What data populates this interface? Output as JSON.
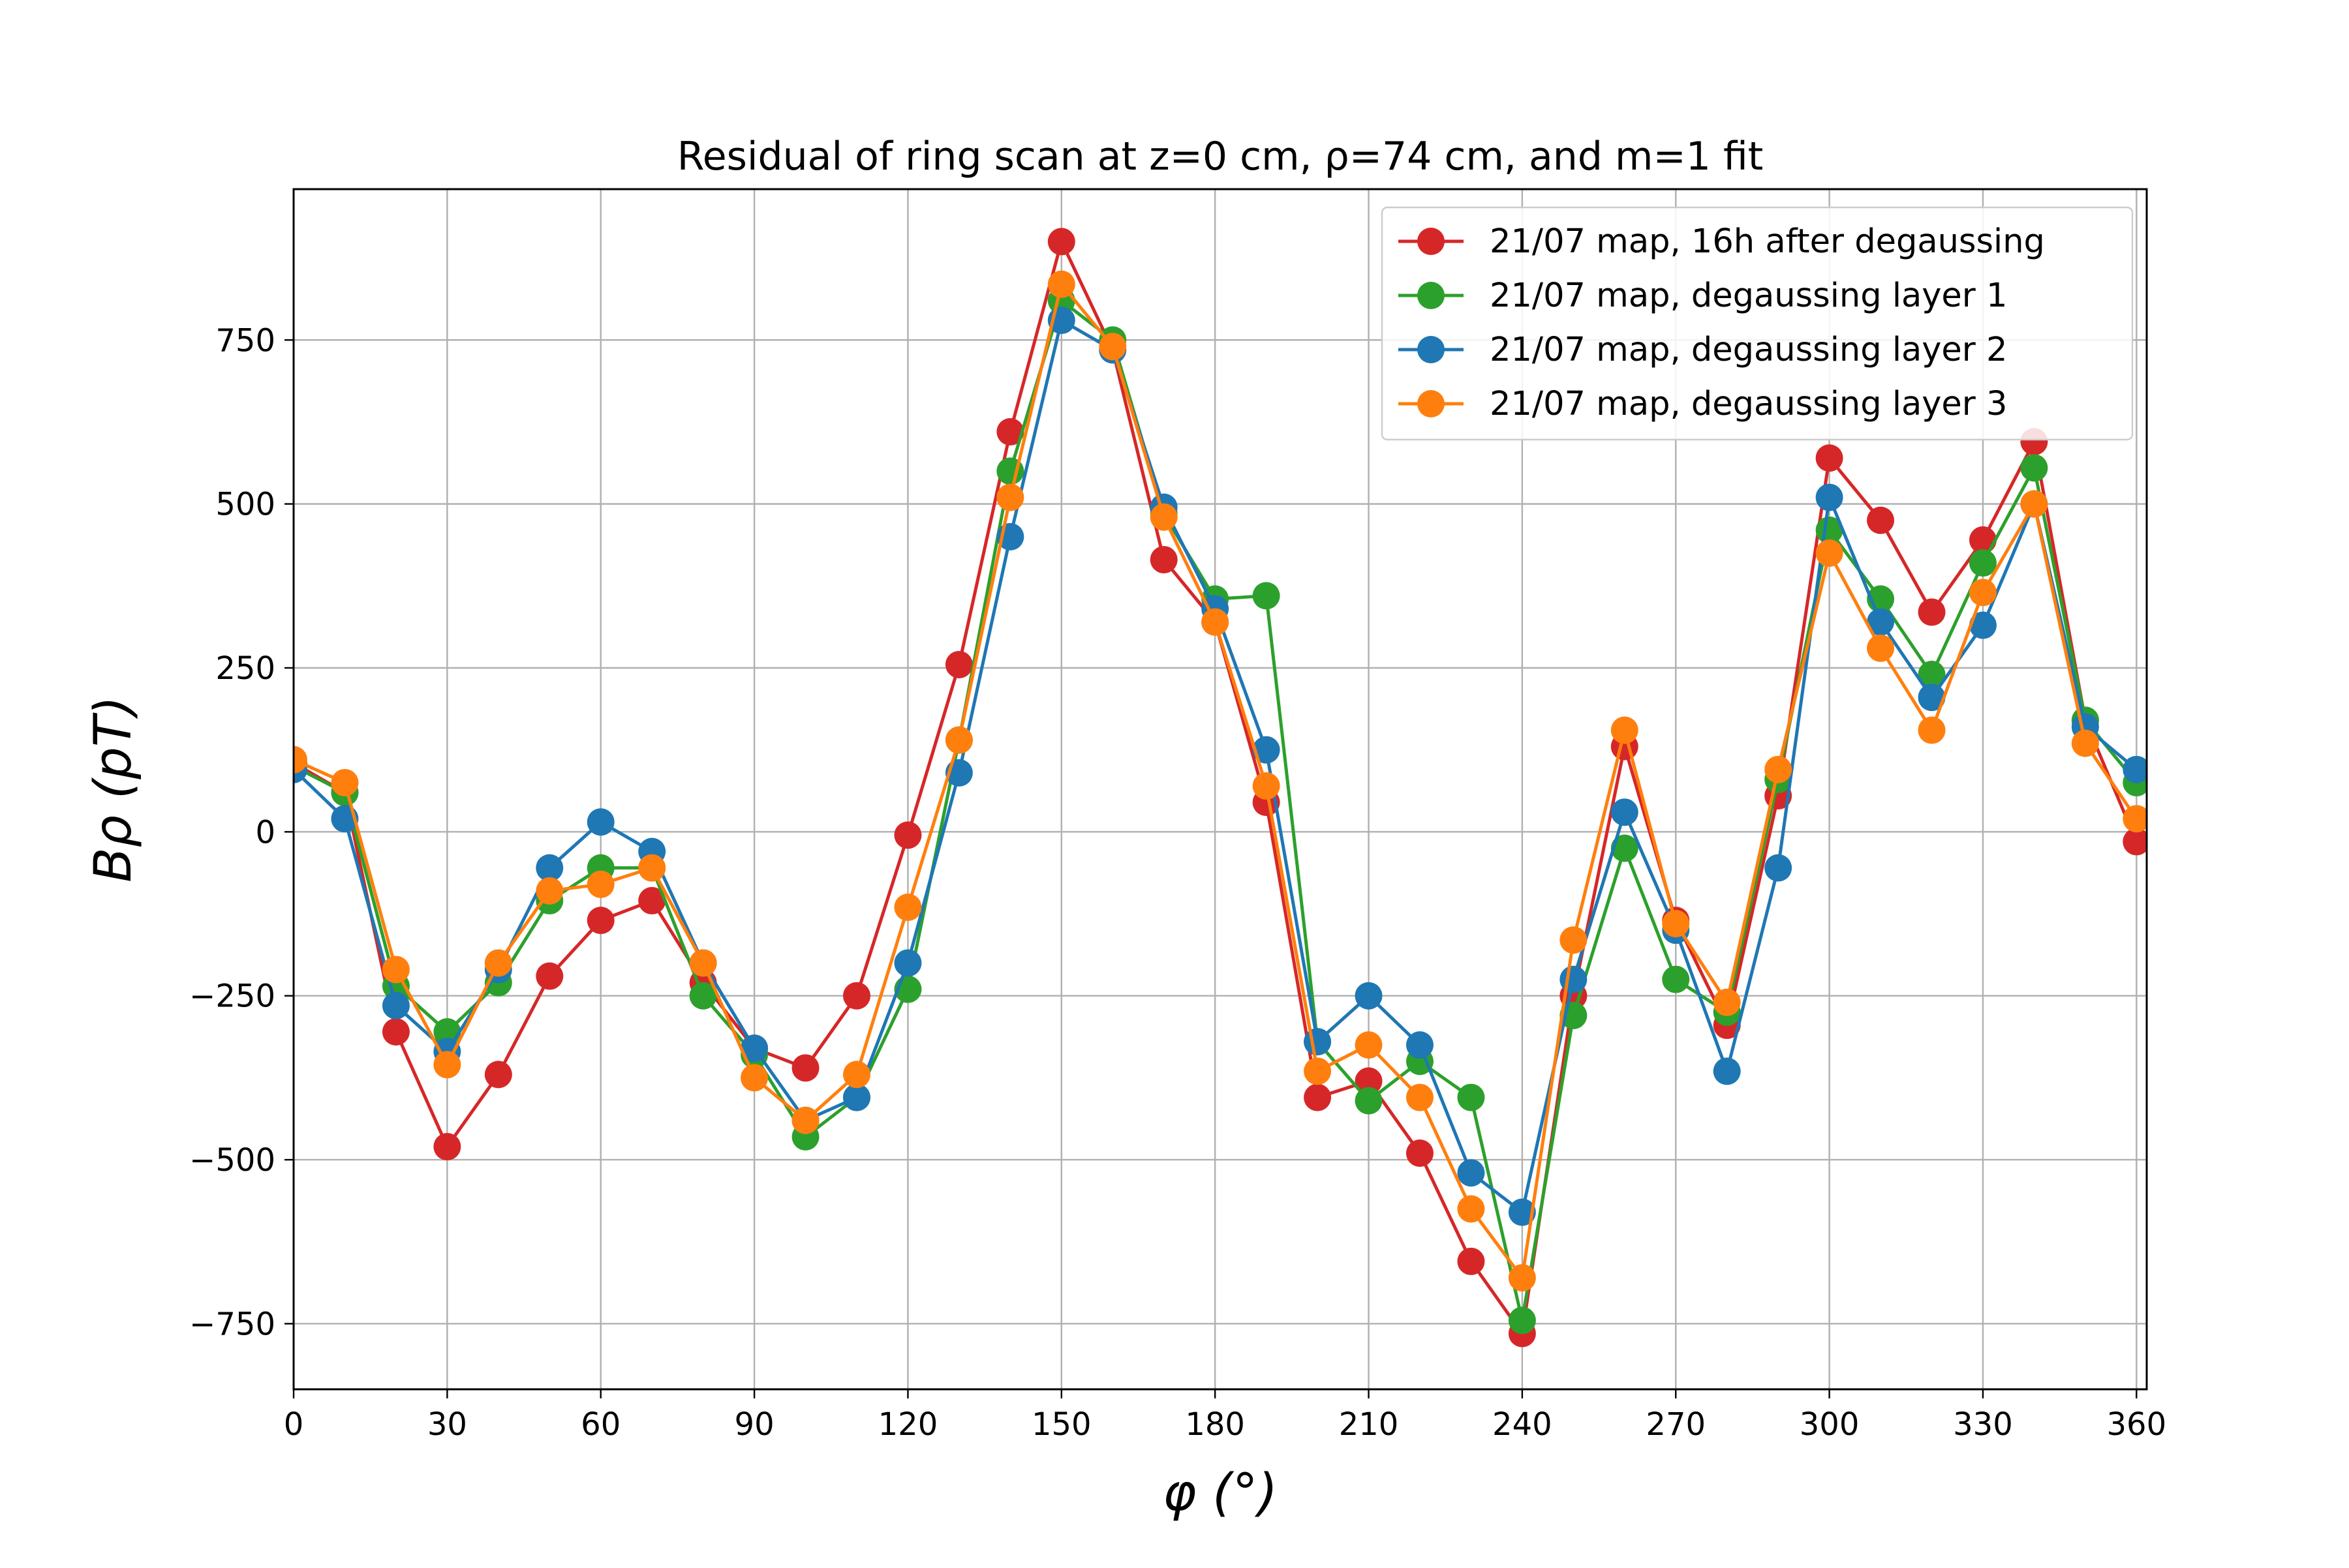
{
  "chart_data": {
    "type": "line",
    "title": "Residual of ring scan at z=0 cm, ρ=74 cm, and m=1 fit",
    "xlabel": "φ (°)",
    "ylabel": "Bρ (pT)",
    "xlim": [
      0,
      362
    ],
    "ylim": [
      -850,
      980
    ],
    "xticks": [
      0,
      30,
      60,
      90,
      120,
      150,
      180,
      210,
      240,
      270,
      300,
      330,
      360
    ],
    "yticks": [
      -750,
      -500,
      -250,
      0,
      250,
      500,
      750
    ],
    "grid": true,
    "legend_position": "top-right",
    "x": [
      0,
      10,
      20,
      30,
      40,
      50,
      60,
      70,
      80,
      90,
      100,
      110,
      120,
      130,
      140,
      150,
      160,
      170,
      180,
      190,
      200,
      210,
      220,
      230,
      240,
      250,
      260,
      270,
      280,
      290,
      300,
      310,
      320,
      330,
      340,
      350,
      360
    ],
    "series": [
      {
        "name": "21/07 map, 16h after degaussing",
        "color": "#d62728",
        "values": [
          105,
          60,
          -305,
          -480,
          -370,
          -220,
          -135,
          -105,
          -230,
          -330,
          -360,
          -250,
          -5,
          255,
          610,
          900,
          735,
          415,
          320,
          45,
          -405,
          -380,
          -490,
          -655,
          -765,
          -250,
          130,
          -135,
          -295,
          55,
          570,
          475,
          335,
          445,
          595,
          170,
          -15
        ]
      },
      {
        "name": "21/07 map, degaussing layer 1",
        "color": "#2ca02c",
        "values": [
          100,
          60,
          -235,
          -305,
          -230,
          -105,
          -55,
          -55,
          -250,
          -340,
          -465,
          -405,
          -240,
          140,
          550,
          810,
          750,
          485,
          355,
          360,
          -320,
          -410,
          -350,
          -405,
          -745,
          -280,
          -25,
          -225,
          -275,
          80,
          460,
          355,
          240,
          410,
          555,
          170,
          75
        ]
      },
      {
        "name": "21/07 map, degaussing layer 2",
        "color": "#1f77b4",
        "values": [
          95,
          20,
          -265,
          -335,
          -210,
          -55,
          15,
          -30,
          -200,
          -330,
          -440,
          -405,
          -200,
          90,
          450,
          780,
          735,
          495,
          340,
          125,
          -320,
          -250,
          -325,
          -520,
          -580,
          -225,
          30,
          -150,
          -365,
          -55,
          510,
          320,
          205,
          315,
          500,
          160,
          95
        ]
      },
      {
        "name": "21/07 map, degaussing layer 3",
        "color": "#ff7f0e",
        "values": [
          110,
          75,
          -210,
          -355,
          -200,
          -90,
          -80,
          -55,
          -200,
          -375,
          -440,
          -370,
          -115,
          140,
          510,
          835,
          740,
          480,
          320,
          70,
          -365,
          -325,
          -405,
          -575,
          -680,
          -165,
          155,
          -140,
          -260,
          95,
          425,
          280,
          155,
          365,
          500,
          135,
          20
        ]
      }
    ]
  }
}
